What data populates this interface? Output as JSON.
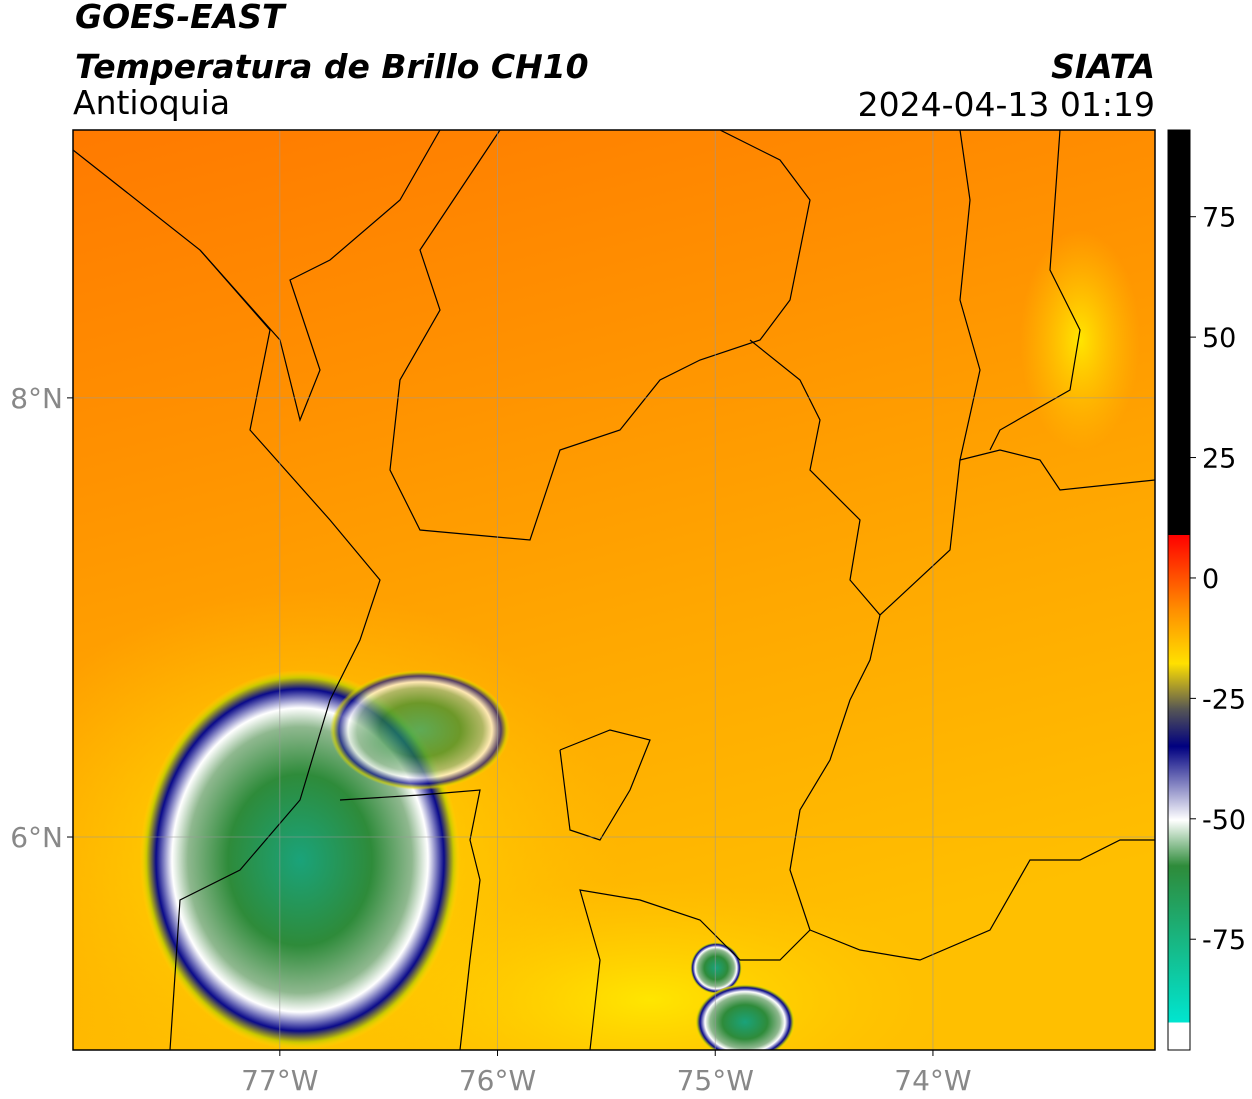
{
  "header": {
    "title": "GOES-EAST",
    "subtitle": "Temperatura de Brillo CH10",
    "region": "Antioquia",
    "source": "SIATA",
    "datetime": "2024-04-13 01:19"
  },
  "map": {
    "xlim": [
      -77.95,
      -72.98
    ],
    "ylim": [
      5.03,
      9.22
    ],
    "xticks": [
      {
        "value": -77,
        "label": "77°W"
      },
      {
        "value": -76,
        "label": "76°W"
      },
      {
        "value": -75,
        "label": "75°W"
      },
      {
        "value": -74,
        "label": "74°W"
      }
    ],
    "yticks": [
      {
        "value": 8,
        "label": "8°N"
      },
      {
        "value": 6,
        "label": "6°N"
      }
    ],
    "grid": true
  },
  "colorbar": {
    "lim": [
      -98,
      93
    ],
    "ticks": [
      75,
      50,
      25,
      0,
      -25,
      -50,
      -75
    ]
  }
}
